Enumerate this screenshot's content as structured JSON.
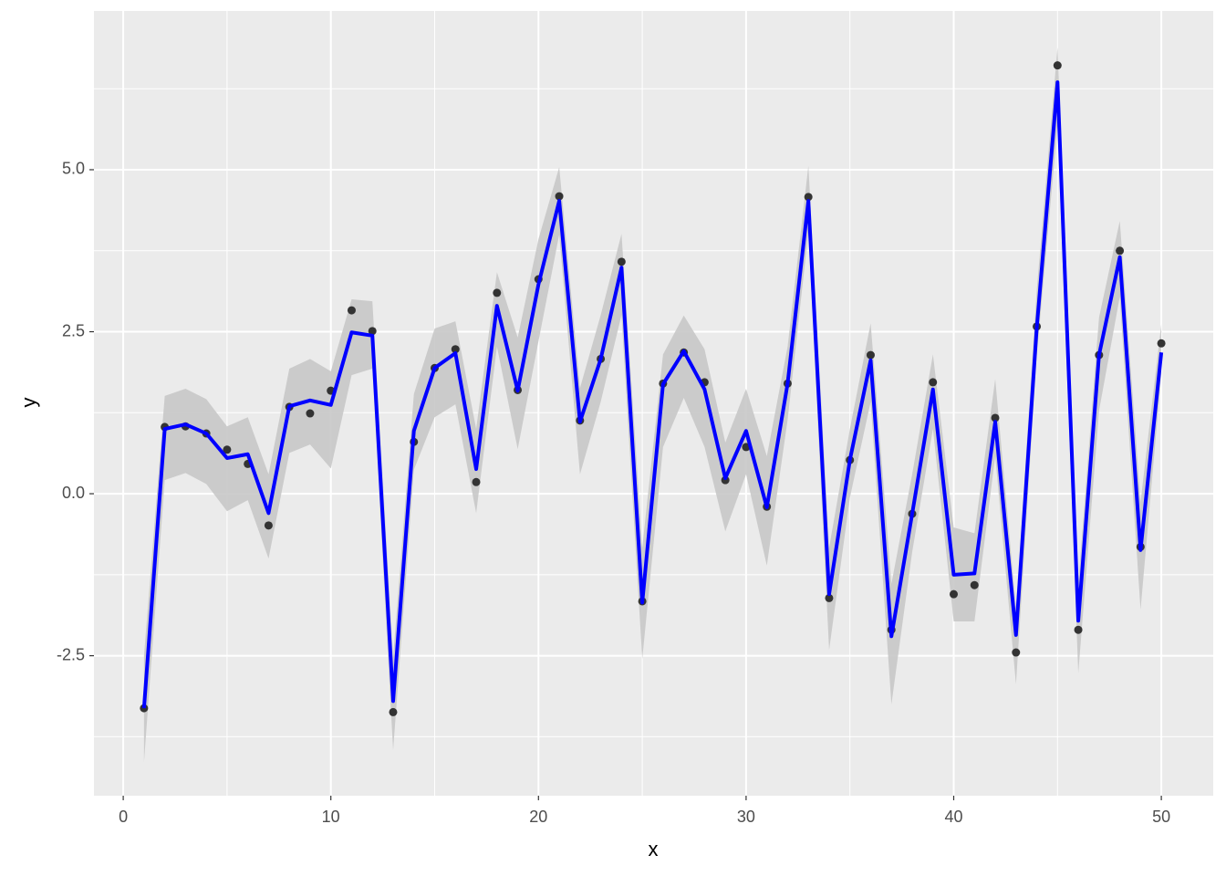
{
  "chart_data": {
    "type": "line",
    "x_label": "x",
    "y_label": "y",
    "x": [
      1,
      2,
      3,
      4,
      5,
      6,
      7,
      8,
      9,
      10,
      11,
      12,
      13,
      14,
      15,
      16,
      17,
      18,
      19,
      20,
      21,
      22,
      23,
      24,
      25,
      26,
      27,
      28,
      29,
      30,
      31,
      32,
      33,
      34,
      35,
      36,
      37,
      38,
      39,
      40,
      41,
      42,
      43,
      44,
      45,
      46,
      47,
      48,
      49,
      50
    ],
    "points": {
      "color": "#333333",
      "values": [
        -3.31,
        1.03,
        1.04,
        0.93,
        0.68,
        0.46,
        -0.49,
        1.34,
        1.24,
        1.59,
        2.83,
        2.51,
        -3.37,
        0.8,
        1.94,
        2.23,
        0.18,
        3.1,
        1.6,
        3.31,
        4.59,
        1.13,
        2.08,
        3.58,
        -1.66,
        1.7,
        2.18,
        1.72,
        0.21,
        0.72,
        -0.2,
        1.7,
        4.58,
        -1.61,
        0.52,
        2.14,
        -2.1,
        -0.31,
        1.72,
        -1.55,
        -1.41,
        1.17,
        -2.45,
        2.58,
        6.61,
        -2.1,
        2.14,
        3.75,
        -0.82,
        2.32
      ]
    },
    "line": {
      "color": "#0000ff",
      "values": [
        -3.31,
        1.0,
        1.07,
        0.93,
        0.55,
        0.61,
        -0.3,
        1.35,
        1.44,
        1.37,
        2.49,
        2.44,
        -3.2,
        0.97,
        1.94,
        2.17,
        0.38,
        2.9,
        1.59,
        3.23,
        4.52,
        1.11,
        2.08,
        3.49,
        -1.68,
        1.69,
        2.2,
        1.61,
        0.24,
        0.97,
        -0.21,
        1.7,
        4.52,
        -1.55,
        0.52,
        2.06,
        -2.2,
        -0.31,
        1.61,
        -1.25,
        -1.23,
        1.11,
        -2.18,
        2.56,
        6.35,
        -1.96,
        2.14,
        3.65,
        -0.87,
        2.18
      ]
    },
    "ribbon": {
      "color": "#c8c8c8",
      "upper": [
        -2.5,
        1.51,
        1.62,
        1.46,
        1.04,
        1.18,
        0.3,
        1.93,
        2.08,
        1.89,
        3.0,
        2.97,
        -2.52,
        1.54,
        2.55,
        2.66,
        1.0,
        3.42,
        2.41,
        3.93,
        5.04,
        1.63,
        2.76,
        4.01,
        -0.83,
        2.15,
        2.75,
        2.23,
        0.79,
        1.62,
        0.58,
        2.27,
        5.06,
        -0.83,
        1.0,
        2.63,
        -1.39,
        0.3,
        2.15,
        -0.52,
        -0.61,
        1.77,
        -1.77,
        3.14,
        6.89,
        -1.39,
        2.72,
        4.21,
        -0.13,
        2.62
      ],
      "lower": [
        -4.14,
        0.21,
        0.32,
        0.15,
        -0.27,
        -0.1,
        -1.0,
        0.63,
        0.76,
        0.39,
        1.83,
        1.93,
        -3.96,
        0.37,
        1.18,
        1.38,
        -0.3,
        2.27,
        0.69,
        2.35,
        4.0,
        0.3,
        1.42,
        2.76,
        -2.55,
        0.72,
        1.48,
        0.72,
        -0.58,
        0.3,
        -1.11,
        1.14,
        4.03,
        -2.41,
        -0.06,
        1.42,
        -3.25,
        -0.9,
        1.0,
        -1.97,
        -1.97,
        0.58,
        -2.94,
        2.13,
        5.68,
        -2.77,
        1.28,
        3.04,
        -1.79,
        1.85
      ]
    },
    "xlim": [
      -1.41,
      52.5
    ],
    "ylim": [
      -4.66,
      7.45
    ],
    "xticks": [
      0,
      10,
      20,
      30,
      40,
      50
    ],
    "yticks": [
      {
        "value": -2.5,
        "label": "-2.5"
      },
      {
        "value": 0,
        "label": "0.0"
      },
      {
        "value": 2.5,
        "label": "2.5"
      },
      {
        "value": 5,
        "label": "5.0"
      }
    ],
    "grid": true
  }
}
